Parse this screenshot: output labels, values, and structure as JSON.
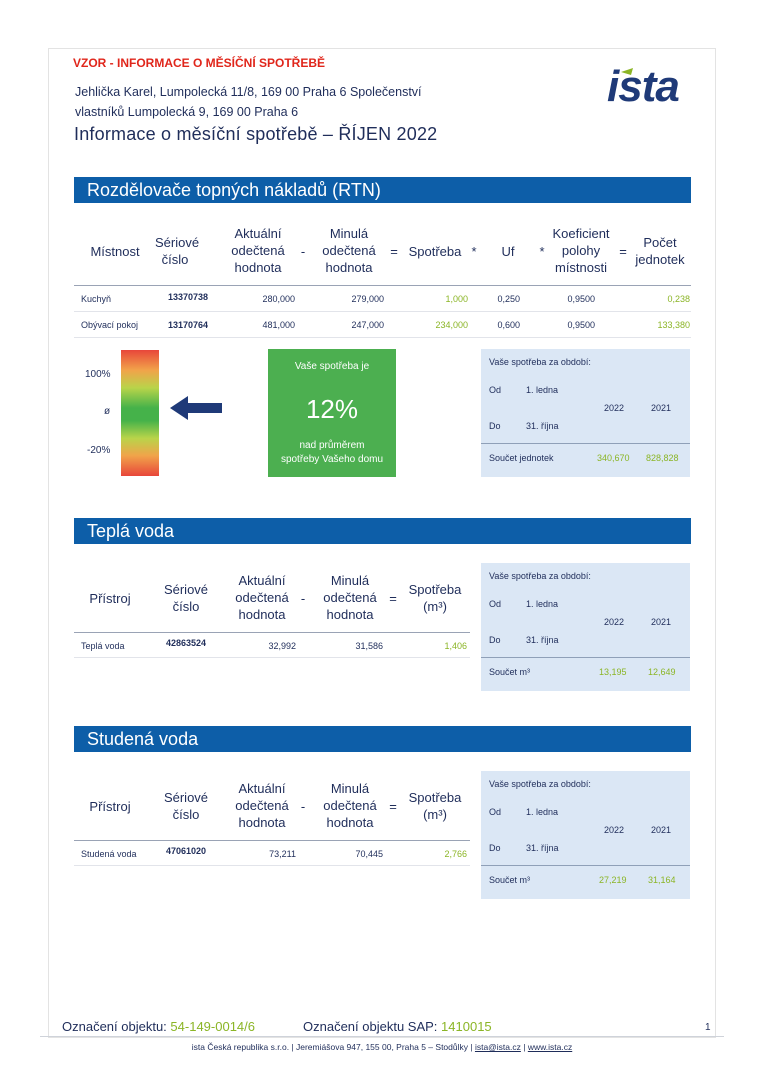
{
  "header": {
    "vzor": "VZOR - INFORMACE O MĚSÍČNÍ SPOTŘEBĚ",
    "address_line1": "Jehlička Karel, Lumpolecká 11/8, 169 00 Praha 6 Společenství",
    "address_line2": "vlastníků  Lumpolecká 9, 169 00 Praha 6",
    "title": "Informace o měsíční spotřebě – ŘÍJEN 2022",
    "logo_text": "ista",
    "colors": {
      "brand_blue": "#0d5ea8",
      "vzor_red": "#e0261b",
      "value_green": "#8bb526"
    }
  },
  "rtn": {
    "section_title": "Rozdělovače topných nákladů (RTN)",
    "headers": {
      "mistnost": "Místnost",
      "seriove1": "Sériové",
      "seriove2": "číslo",
      "aktualni1": "Aktuální",
      "aktualni2": "odečtená",
      "aktualni3": "hodnota",
      "minus": "-",
      "minula1": "Minulá",
      "minula2": "odečtená",
      "minula3": "hodnota",
      "eq1": "=",
      "spotreba": "Spotřeba",
      "times1": "*",
      "uf": "Uf",
      "times2": "*",
      "koef1": "Koeficient",
      "koef2": "polohy",
      "koef3": "místnosti",
      "eq2": "=",
      "pocet1": "Počet",
      "pocet2": "jednotek"
    },
    "rows": [
      {
        "mistnost": "Kuchyň",
        "cislo": "13370738",
        "aktualni": "280,000",
        "minula": "279,000",
        "spotreba": "1,000",
        "uf": "0,250",
        "koef": "0,9500",
        "pocet": "0,238"
      },
      {
        "mistnost": "Obývací pokoj",
        "cislo": "13170764",
        "aktualni": "481,000",
        "minula": "247,000",
        "spotreba": "234,000",
        "uf": "0,600",
        "koef": "0,9500",
        "pocet": "133,380"
      }
    ],
    "gauge": {
      "top": "100%",
      "mid": "ø",
      "bottom": "-20%",
      "arrow_icon": "left-arrow-icon"
    },
    "usage": {
      "intro": "Vaše spotřeba je",
      "percent": "12%",
      "note1": "nad průměrem",
      "note2": "spotřeby Vašeho domu",
      "value": 0.12
    },
    "summary": {
      "title": "Vaše spotřeba za období:",
      "od": "Od",
      "od_date": "1. ledna",
      "do": "Do",
      "do_date": "31. října",
      "year1": "2022",
      "year2": "2021",
      "sum_label": "Součet jednotek",
      "sum1": "340,670",
      "sum2": "828,828"
    }
  },
  "tepla": {
    "section_title": "Teplá voda",
    "headers": {
      "pristroj": "Přístroj",
      "seriove1": "Sériové",
      "seriove2": "číslo",
      "aktualni1": "Aktuální",
      "aktualni2": "odečtená",
      "aktualni3": "hodnota",
      "minus": "-",
      "minula1": "Minulá",
      "minula2": "odečtená",
      "minula3": "hodnota",
      "eq": "=",
      "spotreba1": "Spotřeba",
      "spotreba2": "(m³)"
    },
    "row": {
      "pristroj": "Teplá voda",
      "cislo": "42863524",
      "aktualni": "32,992",
      "minula": "31,586",
      "spotreba": "1,406"
    },
    "summary": {
      "title": "Vaše spotřeba za období:",
      "od": "Od",
      "od_date": "1. ledna",
      "do": "Do",
      "do_date": "31. října",
      "year1": "2022",
      "year2": "2021",
      "sum_label": "Součet m³",
      "sum1": "13,195",
      "sum2": "12,649"
    }
  },
  "studena": {
    "section_title": "Studená voda",
    "headers": {
      "pristroj": "Přístroj",
      "seriove1": "Sériové",
      "seriove2": "číslo",
      "aktualni1": "Aktuální",
      "aktualni2": "odečtená",
      "aktualni3": "hodnota",
      "minus": "-",
      "minula1": "Minulá",
      "minula2": "odečtená",
      "minula3": "hodnota",
      "eq": "=",
      "spotreba1": "Spotřeba",
      "spotreba2": "(m³)"
    },
    "row": {
      "pristroj": "Studená voda",
      "cislo": "47061020",
      "aktualni": "73,211",
      "minula": "70,445",
      "spotreba": "2,766"
    },
    "summary": {
      "title": "Vaše spotřeba za období:",
      "od": "Od",
      "od_date": "1. ledna",
      "do": "Do",
      "do_date": "31. října",
      "year1": "2022",
      "year2": "2021",
      "sum_label": "Součet m³",
      "sum1": "27,219",
      "sum2": "31,164"
    }
  },
  "footer": {
    "obj_label": "Označení objektu:",
    "obj_value": "54-149-0014/6",
    "sap_label": "Označení objektu SAP:",
    "sap_value": "1410015",
    "page_number": "1",
    "legal_text": "ista Česká republika s.r.o. | Jeremiášova 947, 155 00, Praha 5 – Stodůlky | ",
    "email": "ista@ista.cz",
    "separator": " | ",
    "web": "www.ista.cz"
  }
}
